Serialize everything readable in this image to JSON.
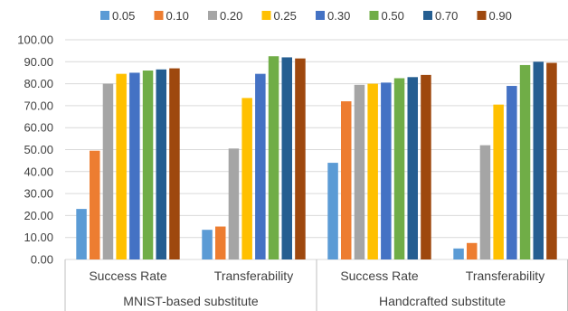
{
  "chart_data": {
    "type": "bar",
    "ylim": [
      0,
      100
    ],
    "yticks": [
      "0.00",
      "10.00",
      "20.00",
      "30.00",
      "40.00",
      "50.00",
      "60.00",
      "70.00",
      "80.00",
      "90.00",
      "100.00"
    ],
    "groups": [
      "MNIST-based substitute",
      "Handcrafted substitute"
    ],
    "categories": [
      "Success Rate",
      "Transferability",
      "Success Rate",
      "Transferability"
    ],
    "grid": true,
    "legend_position": "top",
    "series": [
      {
        "name": "0.05",
        "color": "#5B9BD5",
        "values": [
          23,
          13.5,
          44,
          5
        ]
      },
      {
        "name": "0.10",
        "color": "#ED7D31",
        "values": [
          49.5,
          15,
          72,
          7.5
        ]
      },
      {
        "name": "0.20",
        "color": "#A5A5A5",
        "values": [
          80,
          50.5,
          79.5,
          52
        ]
      },
      {
        "name": "0.25",
        "color": "#FFC000",
        "values": [
          84.5,
          73.5,
          80,
          70.5
        ]
      },
      {
        "name": "0.30",
        "color": "#4472C4",
        "values": [
          85,
          84.5,
          80.5,
          79
        ]
      },
      {
        "name": "0.50",
        "color": "#70AD47",
        "values": [
          86,
          92.5,
          82.5,
          88.5
        ]
      },
      {
        "name": "0.70",
        "color": "#255E91",
        "values": [
          86.5,
          92,
          83,
          90
        ]
      },
      {
        "name": "0.90",
        "color": "#9E480E",
        "values": [
          87,
          91.5,
          84,
          89.5
        ]
      }
    ]
  }
}
